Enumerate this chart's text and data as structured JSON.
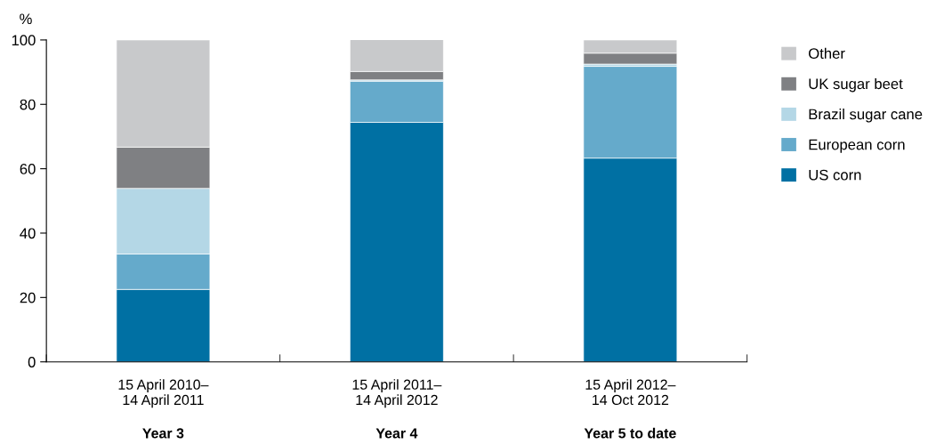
{
  "chart_data": {
    "type": "bar",
    "stacked": true,
    "ylabel": "%",
    "categories": [
      "15 April 2010–\n14 April 2011",
      "15 April 2011–\n14 April 2012",
      "15 April 2012–\n14 Oct 2012"
    ],
    "annotations": [
      "Year 3",
      "Year 4",
      "Year 5 to date"
    ],
    "series": [
      {
        "name": "US corn",
        "color": "#0070a3",
        "values": [
          22.5,
          74.4,
          63.3
        ]
      },
      {
        "name": "European corn",
        "color": "#65aacb",
        "values": [
          11.0,
          12.8,
          28.5
        ]
      },
      {
        "name": "Brazil sugar cane",
        "color": "#b4d7e6",
        "values": [
          20.4,
          0.4,
          0.7
        ]
      },
      {
        "name": "UK sugar beet",
        "color": "#7f8083",
        "values": [
          12.8,
          2.6,
          3.4
        ]
      },
      {
        "name": "Other",
        "color": "#c8c9cb",
        "values": [
          33.3,
          10.2,
          4.1
        ]
      }
    ],
    "ylim": [
      0,
      100
    ],
    "yticks": [
      0,
      20,
      40,
      60,
      80,
      100
    ],
    "grid": false,
    "legend": "right"
  }
}
